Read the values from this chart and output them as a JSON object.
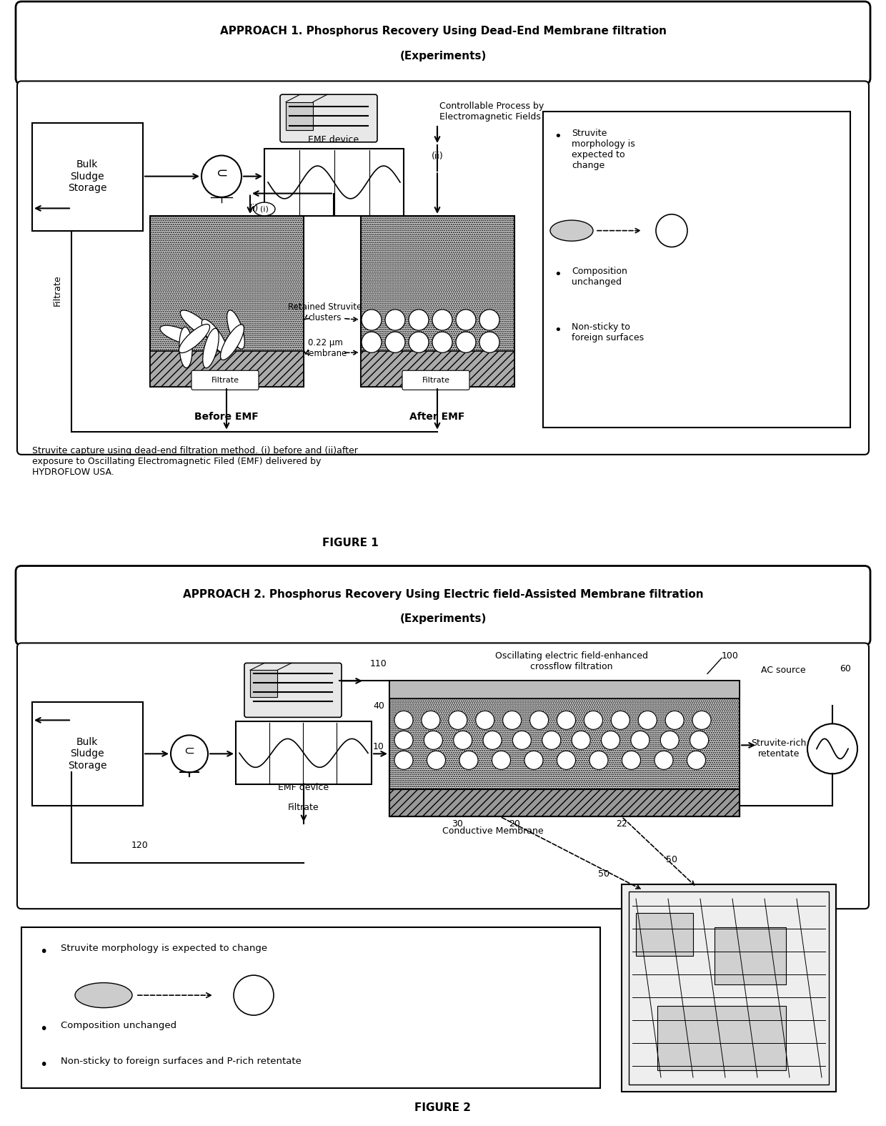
{
  "fig1": {
    "title_line1": "APPROACH 1. Phosphorus Recovery Using Dead-End Membrane filtration",
    "title_line2": "(Experiments)",
    "figure_label": "FIGURE 1",
    "caption": "Struvite capture using dead-end filtration method. (i) before and (ii)after\nexposure to Oscillating Electromagnetic Filed (EMF) delivered by\nHYDROFLOW USA.",
    "labels": {
      "bulk_sludge": "Bulk\nSludge\nStorage",
      "emf_device": "EMF device",
      "before_emf": "Before EMF",
      "after_emf": "After EMF",
      "filtrate_left": "Filtrate",
      "filtrate_box_left": "Filtrate",
      "filtrate_box_right": "Filtrate",
      "retained": "Retained Struvite\nclusters",
      "membrane": "0.22 μm\nMembrane",
      "controllable": "Controllable Process by\nElectromagnetic Fields",
      "bullet1": "Struvite\nmorphology is\nexpected to\nchange",
      "bullet2": "Composition\nunchanged",
      "bullet3": "Non-sticky to\nforeign surfaces",
      "roman_i": "(i)",
      "roman_ii": "(ii)"
    }
  },
  "fig2": {
    "title_line1": "APPROACH 2. Phosphorus Recovery Using Electric field-Assisted Membrane filtration",
    "title_line2": "(Experiments)",
    "figure_label": "FIGURE 2",
    "labels": {
      "bulk_sludge": "Bulk\nSludge\nStorage",
      "emf_device": "EMF device",
      "filtrate": "Filtrate",
      "oscillating": "Oscillating electric field-enhanced\ncrossflow filtration",
      "conductive": "Conductive Membrane",
      "struvite_rich": "Struvite-rich\nretentate",
      "ac_source": "AC source",
      "bullet1": "Struvite morphology is expected to change",
      "bullet2": "Composition unchanged",
      "bullet3": "Non-sticky to foreign surfaces and P-rich retentate",
      "num_100": "100",
      "num_110": "110",
      "num_120": "120",
      "num_40": "40",
      "num_10": "10",
      "num_30": "30",
      "num_20": "20",
      "num_22": "22",
      "num_50": "50",
      "num_60": "60"
    }
  },
  "colors": {
    "background": "#ffffff",
    "dotted_fill": "#d0d0d0",
    "border": "#000000"
  }
}
